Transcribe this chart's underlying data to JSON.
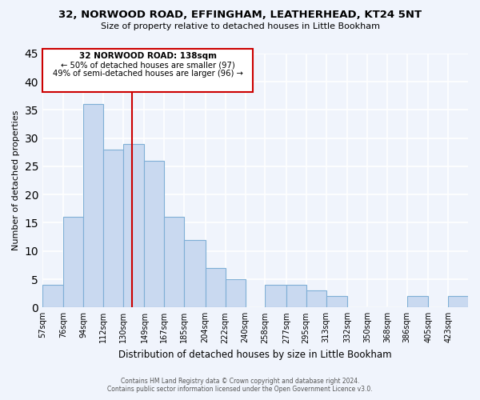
{
  "title": "32, NORWOOD ROAD, EFFINGHAM, LEATHERHEAD, KT24 5NT",
  "subtitle": "Size of property relative to detached houses in Little Bookham",
  "xlabel": "Distribution of detached houses by size in Little Bookham",
  "ylabel": "Number of detached properties",
  "bin_labels": [
    "57sqm",
    "76sqm",
    "94sqm",
    "112sqm",
    "130sqm",
    "149sqm",
    "167sqm",
    "185sqm",
    "204sqm",
    "222sqm",
    "240sqm",
    "258sqm",
    "277sqm",
    "295sqm",
    "313sqm",
    "332sqm",
    "350sqm",
    "368sqm",
    "386sqm",
    "405sqm",
    "423sqm"
  ],
  "bin_edges": [
    57,
    76,
    94,
    112,
    130,
    149,
    167,
    185,
    204,
    222,
    240,
    258,
    277,
    295,
    313,
    332,
    350,
    368,
    386,
    405,
    423
  ],
  "counts": [
    4,
    16,
    36,
    28,
    29,
    26,
    16,
    12,
    7,
    5,
    0,
    4,
    4,
    3,
    2,
    0,
    0,
    0,
    2,
    0,
    2
  ],
  "bar_color": "#c9d9f0",
  "bar_edgecolor": "#7fafd6",
  "vline_x": 138,
  "vline_color": "#cc0000",
  "annotation_box_edgecolor": "#cc0000",
  "annotation_text_line1": "32 NORWOOD ROAD: 138sqm",
  "annotation_text_line2": "← 50% of detached houses are smaller (97)",
  "annotation_text_line3": "49% of semi-detached houses are larger (96) →",
  "ylim": [
    0,
    45
  ],
  "yticks": [
    0,
    5,
    10,
    15,
    20,
    25,
    30,
    35,
    40,
    45
  ],
  "bg_color": "#f0f4fc",
  "grid_color": "#ffffff",
  "footer_line1": "Contains HM Land Registry data © Crown copyright and database right 2024.",
  "footer_line2": "Contains public sector information licensed under the Open Government Licence v3.0."
}
